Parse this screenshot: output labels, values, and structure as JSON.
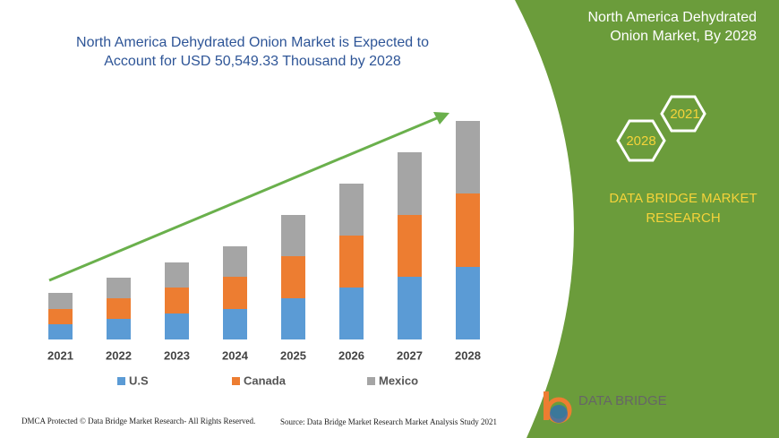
{
  "chart_data": {
    "type": "stacked-bar",
    "title": "North America Dehydrated Onion Market is Expected to Account for USD 50,549.33 Thousand by 2028",
    "categories": [
      "2021",
      "2022",
      "2023",
      "2024",
      "2025",
      "2026",
      "2027",
      "2028"
    ],
    "series": [
      {
        "name": "U.S",
        "color": "#5b9bd5",
        "values": [
          17,
          23,
          29,
          34,
          46,
          58,
          70,
          81
        ]
      },
      {
        "name": "Canada",
        "color": "#ed7d31",
        "values": [
          17,
          23,
          29,
          36,
          47,
          58,
          69,
          82
        ]
      },
      {
        "name": "Mexico",
        "color": "#a5a5a5",
        "values": [
          18,
          23,
          28,
          34,
          46,
          58,
          70,
          81
        ]
      }
    ],
    "ylim": [
      0,
      250
    ]
  },
  "panel": {
    "title": "North America Dehydrated Onion Market, By 2028",
    "hexagons": [
      "2021",
      "2028"
    ],
    "brand": "DATA BRIDGE MARKET RESEARCH"
  },
  "logo": {
    "text": "DATA BRIDGE"
  },
  "footer": {
    "left": "DMCA Protected © Data Bridge Market Research- All Rights Reserved.",
    "right": "Source: Data Bridge Market Research Market Analysis Study 2021"
  }
}
